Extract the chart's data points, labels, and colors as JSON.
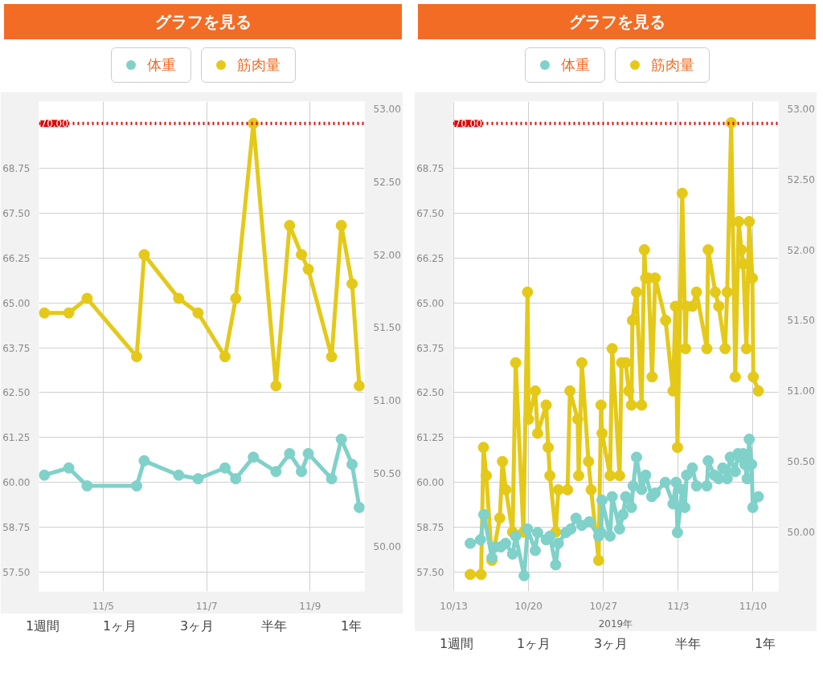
{
  "chart_data": [
    {
      "type": "line",
      "title": "グラフを見る",
      "legend": "top",
      "marker": "circle",
      "line_style": "solid",
      "grid": true,
      "x": [
        "2019-11-03T20:40",
        "2019-11-04T08:00",
        "2019-11-04T16:30",
        "2019-11-05T15:30",
        "2019-11-05T19:00",
        "2019-11-06T11:00",
        "2019-11-06T20:00",
        "2019-11-07T08:30",
        "2019-11-07T13:30",
        "2019-11-07T21:40",
        "2019-11-08T08:10",
        "2019-11-08T14:30",
        "2019-11-08T20:00",
        "2019-11-08T23:10",
        "2019-11-09T10:00",
        "2019-11-09T14:30",
        "2019-11-09T19:30",
        "2019-11-09T22:50"
      ],
      "series": [
        {
          "name": "体重",
          "color": "#7fd1c9",
          "values": [
            60.2,
            60.4,
            59.9,
            59.9,
            60.6,
            60.2,
            60.1,
            60.4,
            60.1,
            60.7,
            60.3,
            60.8,
            60.3,
            60.8,
            60.1,
            61.2,
            60.5,
            59.3
          ]
        },
        {
          "name": "筋肉量",
          "color": "#e4c919",
          "axis": "y2",
          "values": [
            51.6,
            51.6,
            51.7,
            51.3,
            52.0,
            51.7,
            51.6,
            51.3,
            51.7,
            52.9,
            51.1,
            52.2,
            52.0,
            51.9,
            51.3,
            52.2,
            51.8,
            51.1
          ]
        }
      ],
      "xlim": [
        "2019-11-03T18:10",
        "2019-11-10T01:15"
      ],
      "xticks": [
        {
          "value": "2019-11-05",
          "label": "11/5"
        },
        {
          "value": "2019-11-07",
          "label": "11/7"
        },
        {
          "value": "2019-11-09",
          "label": "11/9"
        }
      ],
      "ylim": [
        56.96,
        70.61
      ],
      "yticks": [
        {
          "value": 57.5,
          "label": "57.50"
        },
        {
          "value": 58.75,
          "label": "58.75"
        },
        {
          "value": 60,
          "label": "60.00"
        },
        {
          "value": 61.25,
          "label": "61.25"
        },
        {
          "value": 62.5,
          "label": "62.50"
        },
        {
          "value": 63.75,
          "label": "63.75"
        },
        {
          "value": 65,
          "label": "65.00"
        },
        {
          "value": 66.25,
          "label": "66.25"
        },
        {
          "value": 67.5,
          "label": "67.50"
        },
        {
          "value": 68.75,
          "label": "68.75"
        }
      ],
      "y2lim": [
        49.69,
        53.05
      ],
      "y2ticks": [
        {
          "value": 50,
          "label": "50.00"
        },
        {
          "value": 50.5,
          "label": "50.50"
        },
        {
          "value": 51,
          "label": "51.00"
        },
        {
          "value": 51.5,
          "label": "51.50"
        },
        {
          "value": 52,
          "label": "52.00"
        },
        {
          "value": 52.5,
          "label": "52.50"
        },
        {
          "value": 53,
          "label": "53.00"
        }
      ],
      "ref_lines": [
        {
          "axis": "y",
          "value": 70,
          "label": "70.00",
          "color": "#dd0a0a",
          "line_style": "dotted"
        }
      ],
      "annotations": [
        "1週間",
        "1ヶ月",
        "3ヶ月",
        "半年",
        "1年"
      ]
    },
    {
      "type": "line",
      "title": "グラフを見る",
      "legend": "top",
      "marker": "circle",
      "line_style": "solid",
      "grid": true,
      "xlabel": "2019年",
      "series": [
        {
          "name": "体重",
          "color": "#7fd1c9",
          "x": [
            "2019-10-14T13:00",
            "2019-10-15T12:00",
            "2019-10-15T19:30",
            "2019-10-16T13:40",
            "2019-10-16T21:20",
            "2019-10-17T09:30",
            "2019-10-17T20:20",
            "2019-10-18T12:00",
            "2019-10-18T19:00",
            "2019-10-19T14:00",
            "2019-10-19T21:40",
            "2019-10-20T15:00",
            "2019-10-20T20:20",
            "2019-10-21T15:30",
            "2019-10-21T23:50",
            "2019-10-22T12:50",
            "2019-10-22T18:50",
            "2019-10-23T11:40",
            "2019-10-23T23:00",
            "2019-10-24T10:30",
            "2019-10-24T23:30",
            "2019-10-25T16:20",
            "2019-10-26T13:20",
            "2019-10-26T18:40",
            "2019-10-26T21:00",
            "2019-10-27T15:00",
            "2019-10-27T19:40",
            "2019-10-28T12:20",
            "2019-10-28T20:00",
            "2019-10-29T02:10",
            "2019-10-29T15:00",
            "2019-10-29T18:50",
            "2019-10-30T02:20",
            "2019-10-30T13:50",
            "2019-10-30T23:00",
            "2019-10-31T12:30",
            "2019-10-31T20:20",
            "2019-11-01T19:00",
            "2019-11-02T12:20",
            "2019-11-02T19:10",
            "2019-11-02T22:20",
            "2019-11-03T09:00",
            "2019-11-03T15:00",
            "2019-11-03T18:50",
            "2019-11-04T07:50",
            "2019-11-04T17:00",
            "2019-11-05T16:20",
            "2019-11-05T19:20",
            "2019-11-06T09:00",
            "2019-11-06T19:00",
            "2019-11-07T04:00",
            "2019-11-07T14:00",
            "2019-11-07T20:50",
            "2019-11-08T08:10",
            "2019-11-08T14:20",
            "2019-11-08T20:20",
            "2019-11-09T01:50",
            "2019-11-09T05:30",
            "2019-11-09T10:50",
            "2019-11-09T15:30",
            "2019-11-09T20:50",
            "2019-11-09T23:30",
            "2019-11-10T12:00"
          ],
          "values": [
            58.3,
            58.4,
            59.1,
            57.9,
            58.2,
            58.2,
            58.3,
            58.0,
            58.5,
            57.4,
            58.7,
            58.1,
            58.6,
            58.4,
            58.5,
            57.7,
            58.3,
            58.6,
            58.7,
            59.0,
            58.8,
            58.9,
            58.5,
            58.6,
            59.5,
            58.5,
            59.6,
            58.7,
            59.1,
            59.6,
            59.3,
            59.9,
            60.7,
            59.8,
            60.2,
            59.6,
            59.7,
            60.0,
            59.4,
            60.0,
            58.6,
            59.8,
            59.3,
            60.2,
            60.4,
            59.9,
            59.9,
            60.6,
            60.2,
            60.1,
            60.4,
            60.1,
            60.7,
            60.3,
            60.8,
            60.7,
            60.8,
            60.5,
            60.1,
            61.2,
            60.5,
            59.3,
            59.6
          ]
        },
        {
          "name": "筋肉量",
          "color": "#e4c919",
          "axis": "y2",
          "x": [
            "2019-10-14T13:00",
            "2019-10-15T13:20",
            "2019-10-15T18:40",
            "2019-10-16T01:00",
            "2019-10-16T13:40",
            "2019-10-17T07:20",
            "2019-10-17T13:20",
            "2019-10-17T21:00",
            "2019-10-18T12:00",
            "2019-10-18T19:00",
            "2019-10-19T12:20",
            "2019-10-19T21:40",
            "2019-10-20T00:00",
            "2019-10-20T15:00",
            "2019-10-20T20:20",
            "2019-10-21T15:30",
            "2019-10-21T20:00",
            "2019-10-21T23:50",
            "2019-10-22T12:50",
            "2019-10-22T18:50",
            "2019-10-23T15:30",
            "2019-10-23T20:50",
            "2019-10-24T14:10",
            "2019-10-24T16:30",
            "2019-10-24T23:30",
            "2019-10-25T14:30",
            "2019-10-25T20:30",
            "2019-10-26T13:20",
            "2019-10-26T18:40",
            "2019-10-26T21:00",
            "2019-10-27T15:00",
            "2019-10-27T19:40",
            "2019-10-28T12:20",
            "2019-10-28T16:50",
            "2019-10-29T02:10",
            "2019-10-29T08:50",
            "2019-10-29T15:00",
            "2019-10-29T17:10",
            "2019-10-30T02:20",
            "2019-10-30T13:50",
            "2019-10-30T20:00",
            "2019-10-30T23:00",
            "2019-10-31T05:00",
            "2019-10-31T13:20",
            "2019-10-31T20:20",
            "2019-11-01T19:40",
            "2019-11-02T12:20",
            "2019-11-02T17:50",
            "2019-11-02T22:20",
            "2019-11-03T09:00",
            "2019-11-03T16:30",
            "2019-11-03T18:50",
            "2019-11-04T07:50",
            "2019-11-04T17:00",
            "2019-11-05T16:20",
            "2019-11-05T19:20",
            "2019-11-06T11:20",
            "2019-11-06T19:00",
            "2019-11-07T09:20",
            "2019-11-07T14:00",
            "2019-11-07T23:00",
            "2019-11-08T08:10",
            "2019-11-08T15:50",
            "2019-11-08T21:50",
            "2019-11-09T01:50",
            "2019-11-09T09:10",
            "2019-11-09T15:30",
            "2019-11-09T22:30",
            "2019-11-10T00:40",
            "2019-11-10T12:00"
          ],
          "values": [
            49.7,
            49.7,
            50.6,
            50.4,
            49.8,
            50.1,
            50.5,
            50.3,
            50.0,
            51.2,
            50.0,
            51.7,
            50.8,
            51.0,
            50.7,
            50.9,
            50.6,
            50.4,
            50.0,
            50.3,
            50.3,
            51.0,
            50.8,
            50.4,
            51.2,
            50.5,
            50.3,
            49.8,
            50.9,
            50.7,
            50.4,
            51.3,
            50.4,
            51.2,
            51.2,
            51.0,
            50.9,
            51.5,
            51.7,
            50.9,
            52.0,
            51.8,
            51.8,
            51.1,
            51.8,
            51.5,
            51.0,
            51.6,
            50.6,
            52.4,
            51.3,
            51.6,
            51.6,
            51.7,
            51.3,
            52.0,
            51.7,
            51.6,
            51.3,
            51.7,
            52.9,
            51.1,
            52.2,
            52.0,
            51.9,
            51.3,
            52.2,
            51.8,
            51.1,
            51.0
          ]
        }
      ],
      "xlim": [
        "2019-10-12T22:00",
        "2019-11-12T09:00"
      ],
      "xticks": [
        {
          "value": "2019-10-13",
          "label": "10/13"
        },
        {
          "value": "2019-10-20",
          "label": "10/20"
        },
        {
          "value": "2019-10-27",
          "label": "10/27"
        },
        {
          "value": "2019-11-03",
          "label": "11/3"
        },
        {
          "value": "2019-11-10",
          "label": "11/10"
        }
      ],
      "ylim": [
        56.96,
        70.61
      ],
      "yticks": [
        {
          "value": 57.5,
          "label": "57.50"
        },
        {
          "value": 58.75,
          "label": "58.75"
        },
        {
          "value": 60,
          "label": "60.00"
        },
        {
          "value": 61.25,
          "label": "61.25"
        },
        {
          "value": 62.5,
          "label": "62.50"
        },
        {
          "value": 63.75,
          "label": "63.75"
        },
        {
          "value": 65,
          "label": "65.00"
        },
        {
          "value": 66.25,
          "label": "66.25"
        },
        {
          "value": 67.5,
          "label": "67.50"
        },
        {
          "value": 68.75,
          "label": "68.75"
        }
      ],
      "y2lim": [
        49.58,
        53.05
      ],
      "y2ticks": [
        {
          "value": 50,
          "label": "50.00"
        },
        {
          "value": 50.5,
          "label": "50.50"
        },
        {
          "value": 51,
          "label": "51.00"
        },
        {
          "value": 51.5,
          "label": "51.50"
        },
        {
          "value": 52,
          "label": "52.00"
        },
        {
          "value": 52.5,
          "label": "52.50"
        },
        {
          "value": 53,
          "label": "53.00"
        }
      ],
      "ref_lines": [
        {
          "axis": "y",
          "value": 70,
          "label": "70.00",
          "color": "#dd0a0a",
          "line_style": "dotted"
        }
      ],
      "annotations": [
        "1週間",
        "1ヶ月",
        "3ヶ月",
        "半年",
        "1年"
      ]
    }
  ]
}
